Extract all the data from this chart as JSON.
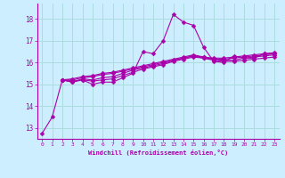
{
  "xlabel": "Windchill (Refroidissement éolien,°C)",
  "bg_color": "#cceeff",
  "grid_color": "#aadddd",
  "line_color": "#aa00aa",
  "xlim": [
    -0.5,
    23.5
  ],
  "ylim": [
    12.5,
    18.7
  ],
  "xticks": [
    0,
    1,
    2,
    3,
    4,
    5,
    6,
    7,
    8,
    9,
    10,
    11,
    12,
    13,
    14,
    15,
    16,
    17,
    18,
    19,
    20,
    21,
    22,
    23
  ],
  "yticks": [
    13,
    14,
    15,
    16,
    17,
    18
  ],
  "series": [
    [
      12.75,
      13.5,
      15.2,
      15.1,
      15.2,
      15.0,
      15.1,
      15.1,
      15.3,
      15.5,
      16.5,
      16.4,
      17.0,
      18.2,
      17.85,
      17.7,
      16.7,
      16.05,
      16.0,
      16.3,
      16.2,
      16.2,
      16.4,
      16.4
    ],
    [
      null,
      null,
      15.2,
      15.1,
      15.25,
      15.2,
      15.3,
      15.35,
      15.5,
      15.65,
      15.75,
      15.85,
      15.95,
      16.1,
      16.2,
      16.3,
      16.2,
      16.15,
      16.15,
      16.2,
      16.25,
      16.3,
      16.35,
      16.4
    ],
    [
      null,
      null,
      15.2,
      15.2,
      15.3,
      15.35,
      15.45,
      15.5,
      15.6,
      15.7,
      15.8,
      15.9,
      16.0,
      16.1,
      16.2,
      16.3,
      16.25,
      16.2,
      16.2,
      16.25,
      16.3,
      16.35,
      16.4,
      16.45
    ],
    [
      null,
      null,
      15.2,
      15.25,
      15.35,
      15.4,
      15.5,
      15.55,
      15.65,
      15.75,
      15.85,
      15.95,
      16.05,
      16.15,
      16.25,
      16.35,
      16.25,
      16.15,
      16.1,
      16.1,
      16.2,
      16.25,
      16.3,
      16.35
    ],
    [
      null,
      null,
      15.2,
      15.15,
      15.2,
      15.15,
      15.2,
      15.25,
      15.4,
      15.55,
      15.7,
      15.8,
      15.9,
      16.05,
      16.15,
      16.25,
      16.2,
      16.1,
      16.05,
      16.05,
      16.1,
      16.15,
      16.2,
      16.25
    ]
  ],
  "marker": "D",
  "markersize": 2.5,
  "linewidth": 0.8
}
